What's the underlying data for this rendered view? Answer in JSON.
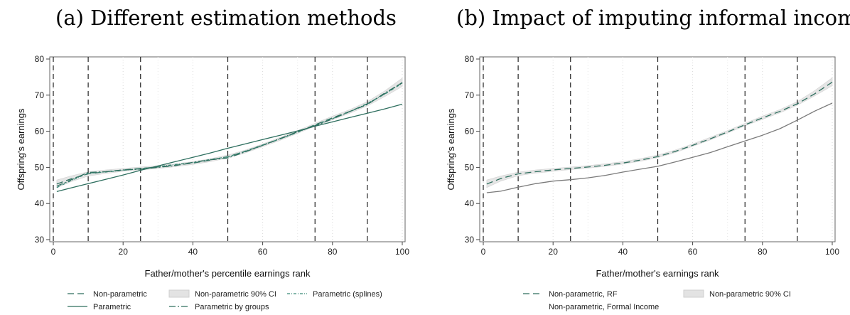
{
  "chart_data": [
    {
      "type": "line",
      "title": "(a) Different estimation methods",
      "xlabel": "Father/mother's percentile earnings rank",
      "ylabel": "Offspring's earnings",
      "xlim": [
        0,
        100
      ],
      "ylim": [
        30,
        80
      ],
      "xticks": [
        0,
        20,
        40,
        60,
        80,
        100
      ],
      "yticks": [
        30,
        40,
        50,
        60,
        70,
        80
      ],
      "vlines": [
        0,
        10,
        25,
        50,
        75,
        90
      ],
      "x": [
        1,
        5,
        10,
        15,
        20,
        25,
        30,
        35,
        40,
        45,
        50,
        55,
        60,
        65,
        70,
        75,
        80,
        85,
        90,
        95,
        100
      ],
      "series": [
        {
          "name": "Non-parametric",
          "style": "dashed",
          "color": "#2d6e5e",
          "values": [
            45.4,
            46.8,
            48.2,
            48.8,
            49.3,
            49.7,
            50.1,
            50.6,
            51.2,
            52.0,
            53.0,
            54.4,
            56.1,
            57.9,
            59.8,
            61.8,
            63.7,
            65.5,
            67.6,
            70.4,
            73.5
          ]
        },
        {
          "name": "Non-parametric 90% CI",
          "style": "band",
          "color": "#e3e3e3",
          "lower": [
            44.4,
            46.0,
            47.6,
            48.3,
            48.9,
            49.3,
            49.7,
            50.2,
            50.8,
            51.6,
            52.6,
            54.0,
            55.7,
            57.5,
            59.4,
            61.4,
            63.2,
            65.0,
            67.0,
            69.6,
            72.4
          ],
          "upper": [
            46.5,
            47.6,
            48.8,
            49.3,
            49.7,
            50.1,
            50.5,
            51.0,
            51.6,
            52.4,
            53.4,
            54.8,
            56.5,
            58.3,
            60.2,
            62.2,
            64.2,
            66.0,
            68.2,
            71.2,
            74.7
          ]
        },
        {
          "name": "Parametric (splines)",
          "style": "dashdot-fine",
          "color": "#3a8a78",
          "values": [
            44.4,
            46.3,
            48.4,
            48.7,
            49.2,
            49.6,
            50.2,
            50.8,
            51.3,
            52.2,
            52.9,
            54.5,
            56.2,
            57.9,
            59.7,
            61.7,
            63.5,
            65.4,
            67.7,
            70.3,
            73.3
          ]
        },
        {
          "name": "Parametric",
          "style": "solid",
          "color": "#2d6e5e",
          "values": [
            43.3,
            44.3,
            45.5,
            46.7,
            47.9,
            49.2,
            50.4,
            51.6,
            52.8,
            54.0,
            55.3,
            56.5,
            57.7,
            58.9,
            60.1,
            61.4,
            62.6,
            63.8,
            65.0,
            66.2,
            67.5
          ]
        },
        {
          "name": "Parametric by groups",
          "style": "dashdot",
          "color": "#2d6e5e",
          "values": [
            44.8,
            46.5,
            48.6,
            48.8,
            49.3,
            49.5,
            50.0,
            50.5,
            51.4,
            52.1,
            52.6,
            54.3,
            56.1,
            58.0,
            59.9,
            61.5,
            63.4,
            65.5,
            67.4,
            70.6,
            73.4
          ]
        }
      ],
      "legend_placement": "bottom"
    },
    {
      "type": "line",
      "title": "(b) Impact of imputing informal income",
      "xlabel": "Father/mother's earnings rank",
      "ylabel": "Offspring's earnings",
      "xlim": [
        0,
        100
      ],
      "ylim": [
        30,
        80
      ],
      "xticks": [
        0,
        20,
        40,
        60,
        80,
        100
      ],
      "yticks": [
        30,
        40,
        50,
        60,
        70,
        80
      ],
      "vlines": [
        0,
        10,
        25,
        50,
        75,
        90
      ],
      "x": [
        1,
        5,
        10,
        15,
        20,
        25,
        30,
        35,
        40,
        45,
        50,
        55,
        60,
        65,
        70,
        75,
        80,
        85,
        90,
        95,
        100
      ],
      "series": [
        {
          "name": "Non-parametric 90% CI",
          "style": "band",
          "color": "#e3e3e3",
          "lower": [
            44.4,
            46.2,
            47.7,
            48.4,
            48.9,
            49.4,
            49.8,
            50.3,
            50.9,
            51.7,
            52.7,
            54.1,
            55.8,
            57.6,
            59.5,
            61.5,
            63.3,
            65.1,
            67.2,
            69.8,
            72.6
          ],
          "upper": [
            46.5,
            47.6,
            48.7,
            49.3,
            49.7,
            50.1,
            50.5,
            51.0,
            51.6,
            52.4,
            53.4,
            54.8,
            56.5,
            58.3,
            60.2,
            62.2,
            64.2,
            66.0,
            68.2,
            71.3,
            74.8
          ]
        },
        {
          "name": "Non-parametric, RF",
          "style": "dashed",
          "color": "#2d6e5e",
          "values": [
            45.4,
            46.9,
            48.2,
            48.8,
            49.3,
            49.7,
            50.1,
            50.6,
            51.2,
            52.0,
            53.0,
            54.4,
            56.1,
            57.9,
            59.8,
            61.8,
            63.7,
            65.5,
            67.6,
            70.4,
            73.6
          ]
        },
        {
          "name": "Non-parametric, Formal Income",
          "style": "solid",
          "color": "#7a7a7a",
          "values": [
            43.0,
            43.4,
            44.5,
            45.5,
            46.2,
            46.6,
            47.1,
            47.8,
            48.7,
            49.5,
            50.3,
            51.5,
            52.8,
            54.1,
            55.7,
            57.3,
            58.9,
            60.7,
            63.1,
            65.6,
            67.8
          ]
        }
      ],
      "legend_placement": "bottom"
    }
  ]
}
